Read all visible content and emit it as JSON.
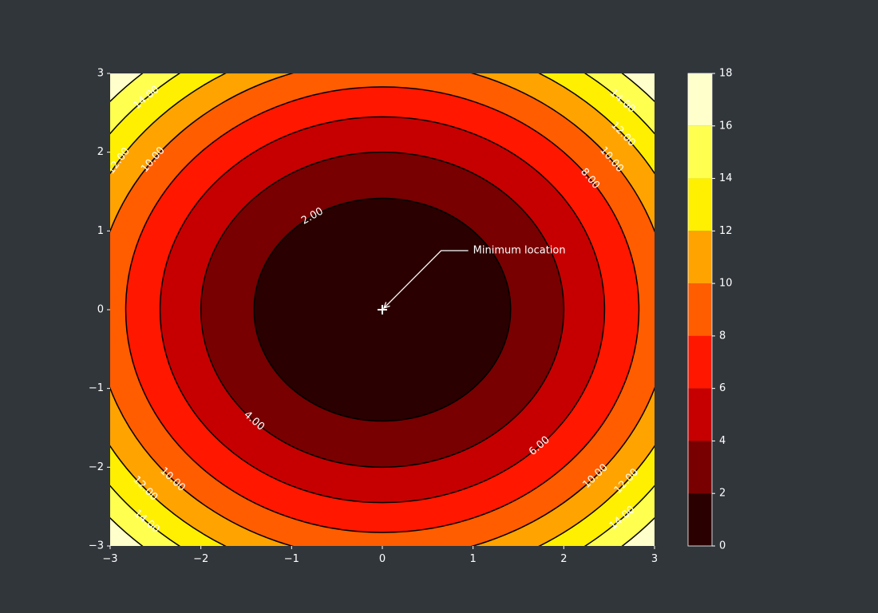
{
  "chart_data": {
    "type": "contour",
    "function": "x^2 + y^2",
    "xlim": [
      -3,
      3
    ],
    "ylim": [
      -3,
      3
    ],
    "x_ticks": [
      "−3",
      "−2",
      "−1",
      "0",
      "1",
      "2",
      "3"
    ],
    "y_ticks": [
      "−3",
      "−2",
      "−1",
      "0",
      "1",
      "2",
      "3"
    ],
    "filled_levels": [
      0,
      2,
      4,
      6,
      8,
      10,
      12,
      14,
      16,
      18
    ],
    "level_colors": [
      "#2a0000",
      "#780000",
      "#c60000",
      "#ff1700",
      "#ff5d00",
      "#ffa300",
      "#ffef00",
      "#ffff50",
      "#ffffcb"
    ],
    "line_levels": [
      2,
      4,
      6,
      8,
      10,
      12,
      14,
      16
    ],
    "contour_labels": [
      {
        "level": 2,
        "text": "2.00",
        "angle_deg": 123
      },
      {
        "level": 4,
        "text": "4.00",
        "angle_deg": 225
      },
      {
        "level": 6,
        "text": "6.00",
        "angle_deg": 315
      },
      {
        "level": 8,
        "text": "8.00",
        "angle_deg": 36
      },
      {
        "level": 10,
        "text": "10.00",
        "angle_deg": 37
      },
      {
        "level": 10,
        "text": "10.00",
        "angle_deg": 143
      },
      {
        "level": 10,
        "text": "10.00",
        "angle_deg": 223
      },
      {
        "level": 10,
        "text": "10.00",
        "angle_deg": 318
      },
      {
        "level": 12,
        "text": "12.00",
        "angle_deg": 40
      },
      {
        "level": 12,
        "text": "12.00",
        "angle_deg": 147
      },
      {
        "level": 12,
        "text": "12.00",
        "angle_deg": 221
      },
      {
        "level": 12,
        "text": "12.00",
        "angle_deg": 321
      },
      {
        "level": 14,
        "text": "14.00",
        "angle_deg": 45
      },
      {
        "level": 14,
        "text": "14.00",
        "angle_deg": 134
      },
      {
        "level": 14,
        "text": "14.00",
        "angle_deg": 226
      },
      {
        "level": 14,
        "text": "14.00",
        "angle_deg": 315
      }
    ],
    "colorbar": {
      "ticks": [
        "0",
        "2",
        "4",
        "6",
        "8",
        "10",
        "12",
        "14",
        "16",
        "18"
      ]
    },
    "annotation": {
      "text": "Minimum location",
      "point": [
        0,
        0
      ],
      "text_at": [
        1.0,
        0.75
      ]
    },
    "grid": false,
    "legend": "none"
  }
}
